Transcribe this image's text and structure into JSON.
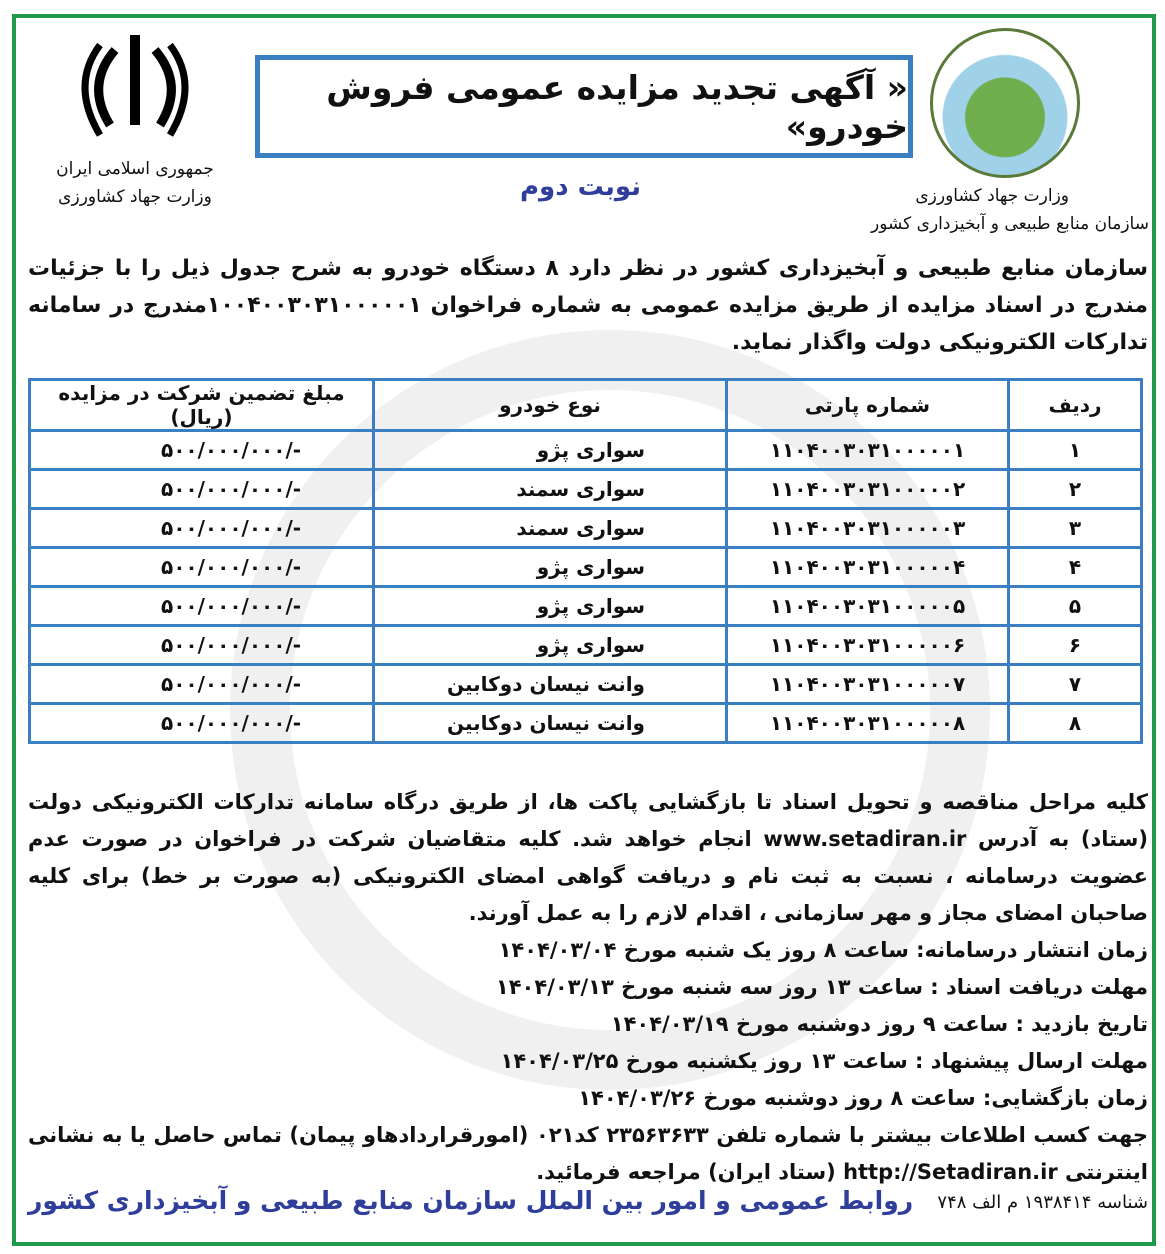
{
  "header": {
    "title": "« آگهی تجدید مزایده عمومی فروش خودرو»",
    "round": "نوبت دوم",
    "left_org": [
      "جمهوری اسلامی ایران",
      "وزارت جهاد کشاورزی"
    ],
    "right_org": [
      "وزارت جهاد کشاورزی",
      "سازمان منابع طبیعی و آبخیزداری کشور"
    ]
  },
  "intro": "سازمان منابع طبیعی و آبخیزداری کشور در نظر دارد ۸ دستگاه خودرو به شرح جدول ذیل را با جزئیات مندرج در اسناد مزایده از طریق مزایده عمومی به شماره فراخوان ۱۰۰۴۰۰۳۰۳۱۰۰۰۰۰۱مندرج در سامانه تدارکات الکترونیکی دولت واگذار نماید.",
  "table": {
    "headers": [
      "ردیف",
      "شماره پارتی",
      "نوع خودرو",
      "مبلغ تضمین شرکت در مزایده (ریال)"
    ],
    "rows": [
      [
        "۱",
        "۱۱۰۴۰۰۳۰۳۱۰۰۰۰۰۱",
        "سواری پژو",
        "۵۰۰/۰۰۰/۰۰۰/-"
      ],
      [
        "۲",
        "۱۱۰۴۰۰۳۰۳۱۰۰۰۰۰۲",
        "سواری سمند",
        "۵۰۰/۰۰۰/۰۰۰/-"
      ],
      [
        "۳",
        "۱۱۰۴۰۰۳۰۳۱۰۰۰۰۰۳",
        "سواری سمند",
        "۵۰۰/۰۰۰/۰۰۰/-"
      ],
      [
        "۴",
        "۱۱۰۴۰۰۳۰۳۱۰۰۰۰۰۴",
        "سواری پژو",
        "۵۰۰/۰۰۰/۰۰۰/-"
      ],
      [
        "۵",
        "۱۱۰۴۰۰۳۰۳۱۰۰۰۰۰۵",
        "سواری پژو",
        "۵۰۰/۰۰۰/۰۰۰/-"
      ],
      [
        "۶",
        "۱۱۰۴۰۰۳۰۳۱۰۰۰۰۰۶",
        "سواری پژو",
        "۵۰۰/۰۰۰/۰۰۰/-"
      ],
      [
        "۷",
        "۱۱۰۴۰۰۳۰۳۱۰۰۰۰۰۷",
        "وانت نیسان دوکابین",
        "۵۰۰/۰۰۰/۰۰۰/-"
      ],
      [
        "۸",
        "۱۱۰۴۰۰۳۰۳۱۰۰۰۰۰۸",
        "وانت نیسان دوکابین",
        "۵۰۰/۰۰۰/۰۰۰/-"
      ]
    ]
  },
  "body": "کلیه مراحل مناقصه و تحویل اسناد تا بازگشایی پاکت ها، از طریق درگاه سامانه تدارکات الکترونیکی دولت (ستاد) به آدرس www.setadiran.ir انجام خواهد شد. کلیه متقاضیان شرکت در فراخوان در صورت عدم عضویت درسامانه ، نسبت به ثبت نام و دریافت گواهی امضای الکترونیکی (به صورت بر خط) برای کلیه صاحبان امضای مجاز و مهر سازمانی ، اقدام لازم را به عمل آورند.",
  "schedule": [
    "زمان انتشار درسامانه: ساعت ۸ روز یک شنبه مورخ ۱۴۰۴/۰۳/۰۴",
    "مهلت دریافت اسناد : ساعت ۱۳ روز سه شنبه مورخ ۱۴۰۴/۰۳/۱۳",
    "تاریخ بازدید : ساعت ۹ روز دوشنبه مورخ ۱۴۰۴/۰۳/۱۹",
    "مهلت ارسال پیشنهاد : ساعت ۱۳ روز یکشنبه مورخ ۱۴۰۴/۰۳/۲۵",
    "زمان بازگشایی: ساعت ۸ روز دوشنبه مورخ ۱۴۰۴/۰۳/۲۶"
  ],
  "contact": "جهت کسب اطلاعات بیشتر با شماره تلفن ۲۳۵۶۳۶۳۳ کد۰۲۱ (امورقراردادهاو پیمان) تماس حاصل یا به نشانی اینترنتی http://Setadiran.ir (ستاد ایران) مراجعه فرمائید.",
  "footer": {
    "id": "شناسه ۱۹۳۸۴۱۴ م الف ۷۴۸",
    "org": "روابط عمومی و امور بین الملل سازمان منابع طبیعی و آبخیزداری کشور"
  },
  "colors": {
    "frame": "#1f9a4a",
    "table_border": "#3a7fc1",
    "accent_text": "#2e3e9a"
  }
}
